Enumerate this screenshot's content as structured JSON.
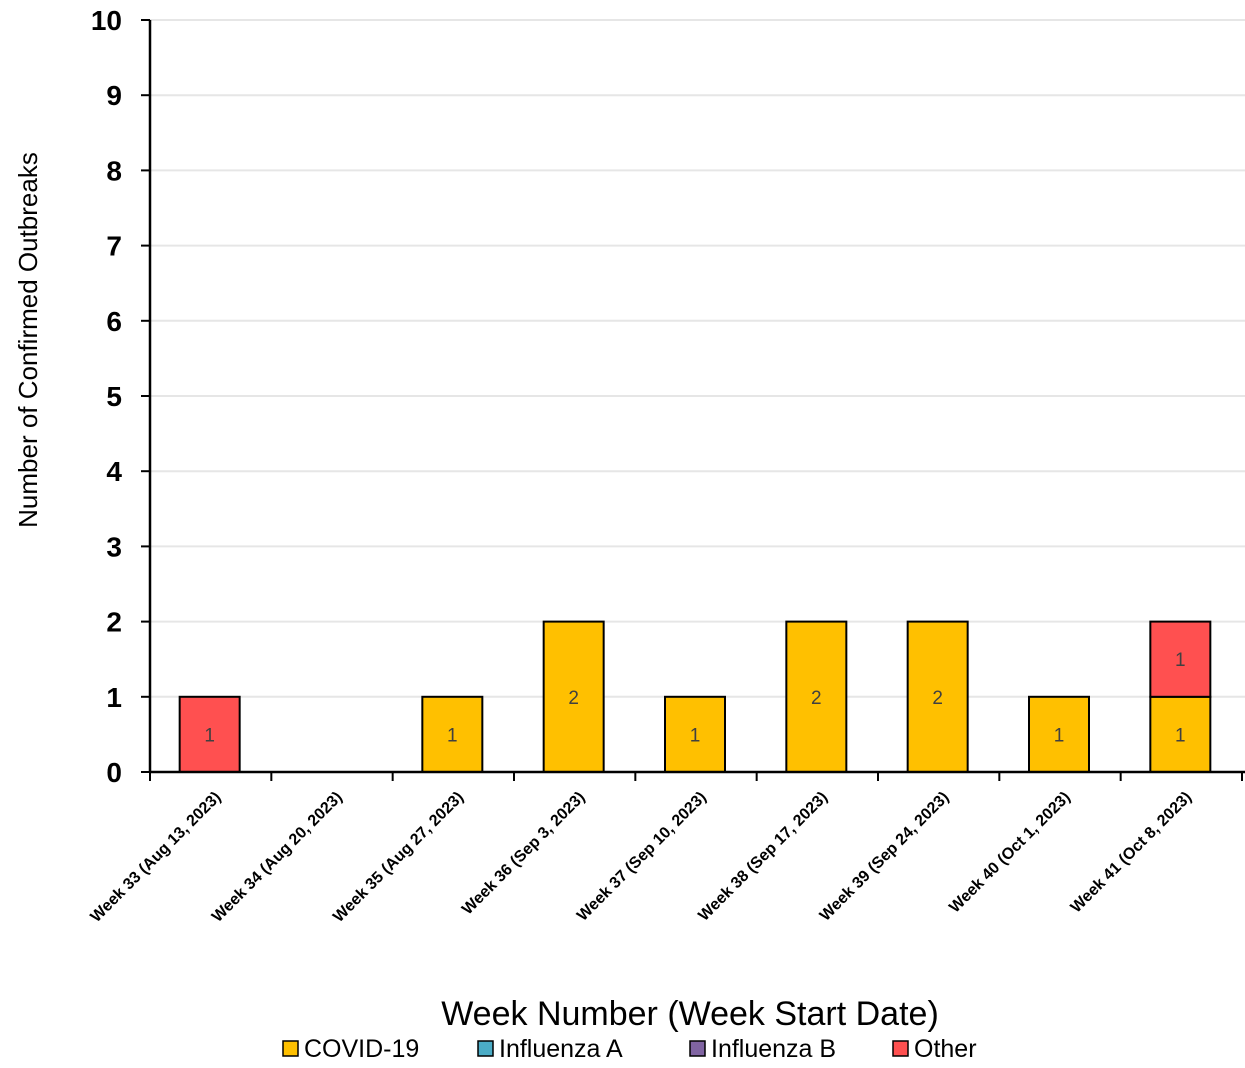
{
  "chart_data": {
    "type": "bar",
    "stacked": true,
    "title": "",
    "xlabel": "Week Number (Week Start Date)",
    "ylabel": "Number of Confirmed Outbreaks",
    "ylim": [
      0,
      10
    ],
    "yticks": [
      0,
      1,
      2,
      3,
      4,
      5,
      6,
      7,
      8,
      9,
      10
    ],
    "grid": true,
    "legend_position": "bottom",
    "categories": [
      "Week 33 (Aug 13, 2023)",
      "Week 34 (Aug 20, 2023)",
      "Week 35 (Aug 27, 2023)",
      "Week 36 (Sep 3, 2023)",
      "Week 37 (Sep 10, 2023)",
      "Week 38 (Sep 17, 2023)",
      "Week 39 (Sep 24, 2023)",
      "Week 40 (Oct 1, 2023)",
      "Week 41 (Oct 8, 2023)"
    ],
    "series": [
      {
        "name": "COVID-19",
        "color": "#FFC000",
        "values": [
          0,
          0,
          1,
          2,
          1,
          2,
          2,
          1,
          1
        ]
      },
      {
        "name": "Influenza A",
        "color": "#4BACC6",
        "values": [
          0,
          0,
          0,
          0,
          0,
          0,
          0,
          0,
          0
        ]
      },
      {
        "name": "Influenza B",
        "color": "#8064A2",
        "values": [
          0,
          0,
          0,
          0,
          0,
          0,
          0,
          0,
          0
        ]
      },
      {
        "name": "Other",
        "color": "#FF5050",
        "values": [
          1,
          0,
          0,
          0,
          0,
          0,
          0,
          0,
          1
        ]
      }
    ]
  }
}
